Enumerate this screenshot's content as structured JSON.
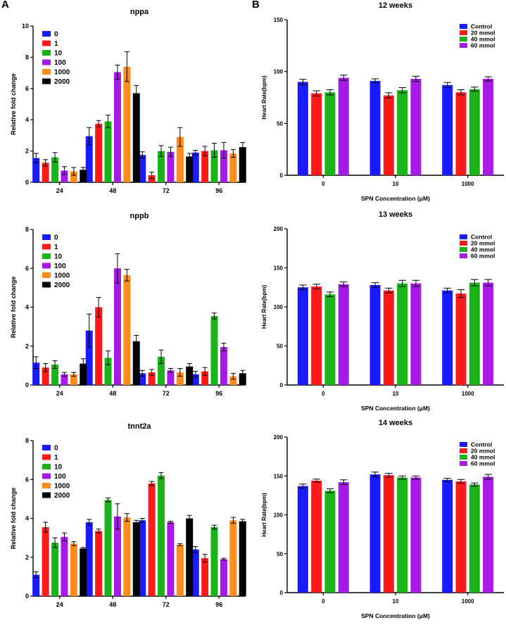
{
  "figure": {
    "panel_a": "A",
    "panel_b": "B"
  },
  "chart_data": [
    {
      "type": "bar",
      "title": "nppa",
      "xlabel": "",
      "ylabel": "Relative fold change",
      "ylim": [
        0,
        10
      ],
      "yticks": [
        0,
        2,
        4,
        6,
        8,
        10
      ],
      "legend_position": "top-left",
      "categories": [
        "24",
        "48",
        "72",
        "96"
      ],
      "series": [
        {
          "name": "0",
          "color": "#1a1aff",
          "values": [
            1.55,
            2.95,
            1.75,
            1.9
          ],
          "errors": [
            0.3,
            0.55,
            0.2,
            0.15
          ]
        },
        {
          "name": "1",
          "color": "#ff1a1a",
          "values": [
            1.25,
            3.75,
            0.45,
            2.0
          ],
          "errors": [
            0.2,
            0.2,
            0.2,
            0.3
          ]
        },
        {
          "name": "10",
          "color": "#1ab31a",
          "values": [
            1.6,
            3.9,
            2.0,
            2.05
          ],
          "errors": [
            0.3,
            0.4,
            0.35,
            0.45
          ]
        },
        {
          "name": "100",
          "color": "#a51ae6",
          "values": [
            0.75,
            7.05,
            1.95,
            2.05
          ],
          "errors": [
            0.25,
            0.45,
            0.3,
            0.5
          ]
        },
        {
          "name": "1000",
          "color": "#ff8c1a",
          "values": [
            0.7,
            7.4,
            2.9,
            1.85
          ],
          "errors": [
            0.25,
            0.95,
            0.6,
            0.25
          ]
        },
        {
          "name": "2000",
          "color": "#000000",
          "values": [
            0.8,
            5.7,
            1.65,
            2.25
          ],
          "errors": [
            0.15,
            0.5,
            0.2,
            0.3
          ]
        }
      ]
    },
    {
      "type": "bar",
      "title": "nppb",
      "xlabel": "",
      "ylabel": "Relative fold change",
      "ylim": [
        0,
        8
      ],
      "yticks": [
        0,
        2,
        4,
        6,
        8
      ],
      "legend_position": "top-left",
      "categories": [
        "24",
        "48",
        "72",
        "96"
      ],
      "series": [
        {
          "name": "0",
          "color": "#1a1aff",
          "values": [
            1.15,
            2.8,
            0.6,
            0.55
          ],
          "errors": [
            0.3,
            0.85,
            0.15,
            0.15
          ]
        },
        {
          "name": "1",
          "color": "#ff1a1a",
          "values": [
            0.9,
            4.0,
            0.65,
            0.7
          ],
          "errors": [
            0.2,
            0.5,
            0.15,
            0.2
          ]
        },
        {
          "name": "10",
          "color": "#1ab31a",
          "values": [
            1.05,
            1.4,
            1.45,
            3.55
          ],
          "errors": [
            0.2,
            0.35,
            0.35,
            0.15
          ]
        },
        {
          "name": "100",
          "color": "#a51ae6",
          "values": [
            0.55,
            6.0,
            0.75,
            1.95
          ],
          "errors": [
            0.1,
            0.75,
            0.1,
            0.2
          ]
        },
        {
          "name": "1000",
          "color": "#ff8c1a",
          "values": [
            0.55,
            5.65,
            0.65,
            0.45
          ],
          "errors": [
            0.1,
            0.3,
            0.2,
            0.15
          ]
        },
        {
          "name": "2000",
          "color": "#000000",
          "values": [
            1.1,
            2.25,
            0.95,
            0.6
          ],
          "errors": [
            0.25,
            0.3,
            0.15,
            0.15
          ]
        }
      ]
    },
    {
      "type": "bar",
      "title": "tnnt2a",
      "xlabel": "",
      "ylabel": "Relative fold change",
      "ylim": [
        0,
        8
      ],
      "yticks": [
        0,
        2,
        4,
        6,
        8
      ],
      "legend_position": "top-left",
      "categories": [
        "24",
        "48",
        "72",
        "96"
      ],
      "series": [
        {
          "name": "0",
          "color": "#1a1aff",
          "values": [
            1.1,
            3.8,
            3.9,
            2.4
          ],
          "errors": [
            0.15,
            0.15,
            0.1,
            0.15
          ]
        },
        {
          "name": "1",
          "color": "#ff1a1a",
          "values": [
            3.55,
            3.35,
            5.8,
            1.95
          ],
          "errors": [
            0.25,
            0.1,
            0.1,
            0.2
          ]
        },
        {
          "name": "10",
          "color": "#1ab31a",
          "values": [
            2.75,
            4.95,
            6.2,
            3.55
          ],
          "errors": [
            0.25,
            0.1,
            0.15,
            0.1
          ]
        },
        {
          "name": "100",
          "color": "#a51ae6",
          "values": [
            3.05,
            4.1,
            3.8,
            1.9
          ],
          "errors": [
            0.2,
            0.65,
            0.05,
            0.05
          ]
        },
        {
          "name": "1000",
          "color": "#ff8c1a",
          "values": [
            2.7,
            4.05,
            2.65,
            3.9
          ],
          "errors": [
            0.1,
            0.2,
            0.05,
            0.15
          ]
        },
        {
          "name": "2000",
          "color": "#000000",
          "values": [
            2.45,
            3.8,
            4.0,
            3.85
          ],
          "errors": [
            0.05,
            0.1,
            0.15,
            0.1
          ]
        }
      ]
    },
    {
      "type": "bar",
      "title": "12 weeks",
      "xlabel": "SPN Concentration (μM)",
      "ylabel": "Heart Rate(bpm)",
      "ylim": [
        0,
        150
      ],
      "yticks": [
        0,
        50,
        100,
        150
      ],
      "legend_position": "top-right",
      "categories": [
        "0",
        "10",
        "1000"
      ],
      "series": [
        {
          "name": "Control",
          "color": "#1a1aff",
          "values": [
            90,
            91,
            87
          ],
          "errors": [
            2.5,
            2,
            2.5
          ]
        },
        {
          "name": "20 mmol",
          "color": "#ff1a1a",
          "values": [
            79,
            77,
            80
          ],
          "errors": [
            2.5,
            2.5,
            2.5
          ]
        },
        {
          "name": "40 mmol",
          "color": "#1ab31a",
          "values": [
            80,
            82,
            83
          ],
          "errors": [
            2.5,
            2.5,
            2
          ]
        },
        {
          "name": "60 mmol",
          "color": "#a51ae6",
          "values": [
            94,
            93,
            93
          ],
          "errors": [
            2.5,
            2.5,
            2
          ]
        }
      ]
    },
    {
      "type": "bar",
      "title": "13 weeks",
      "xlabel": "SPN Concentration (μM)",
      "ylabel": "Heart Rate(bpm)",
      "ylim": [
        0,
        200
      ],
      "yticks": [
        0,
        50,
        100,
        150,
        200
      ],
      "legend_position": "top-right",
      "categories": [
        "0",
        "10",
        "1000"
      ],
      "series": [
        {
          "name": "Control",
          "color": "#1a1aff",
          "values": [
            125,
            128,
            121
          ],
          "errors": [
            3,
            3,
            3
          ]
        },
        {
          "name": "20 mmol",
          "color": "#ff1a1a",
          "values": [
            126,
            121,
            117
          ],
          "errors": [
            3,
            3,
            5
          ]
        },
        {
          "name": "40 mmol",
          "color": "#1ab31a",
          "values": [
            116,
            130,
            131
          ],
          "errors": [
            3,
            4,
            4
          ]
        },
        {
          "name": "60 mmol",
          "color": "#a51ae6",
          "values": [
            129,
            130,
            131
          ],
          "errors": [
            3,
            4,
            4
          ]
        }
      ]
    },
    {
      "type": "bar",
      "title": "14 weeks",
      "xlabel": "SPN Concentration (μM)",
      "ylabel": "Heart Rate(bpm)",
      "ylim": [
        0,
        200
      ],
      "yticks": [
        0,
        50,
        100,
        150,
        200
      ],
      "legend_position": "top-right",
      "categories": [
        "0",
        "10",
        "1000"
      ],
      "series": [
        {
          "name": "Control",
          "color": "#1a1aff",
          "values": [
            137,
            152,
            145
          ],
          "errors": [
            2.5,
            3,
            2
          ]
        },
        {
          "name": "20 mmol",
          "color": "#ff1a1a",
          "values": [
            144,
            151,
            143
          ],
          "errors": [
            2,
            2.5,
            2.5
          ]
        },
        {
          "name": "40 mmol",
          "color": "#1ab31a",
          "values": [
            131,
            148,
            139
          ],
          "errors": [
            2.5,
            2,
            2
          ]
        },
        {
          "name": "60 mmol",
          "color": "#a51ae6",
          "values": [
            142,
            148,
            149
          ],
          "errors": [
            3,
            2,
            3
          ]
        }
      ]
    }
  ]
}
